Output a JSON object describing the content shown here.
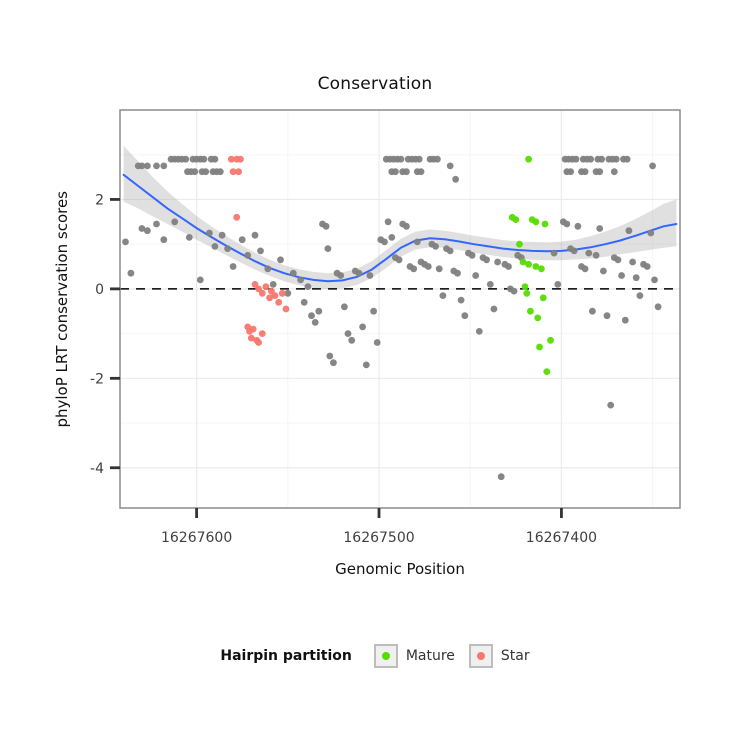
{
  "title": "Conservation",
  "legend": {
    "title": "Hairpin partition",
    "items": [
      {
        "label": "Mature",
        "color": "#55DD00"
      },
      {
        "label": "Star",
        "color": "#F8766D"
      }
    ]
  },
  "chart_data": {
    "type": "scatter",
    "title": "Conservation",
    "xlabel": "Genomic Position",
    "ylabel": "phyloP LRT conservation scores",
    "grid": true,
    "legend_position": "bottom",
    "panel_bg": "#FFFFFF",
    "panel_border": "#8C8C8C",
    "grid_major": "#EBEBEB",
    "grid_minor": "#F5F5F5",
    "tick_color": "#333333",
    "tick_label_color": "#404040",
    "point_radius": 3.4,
    "x_axis": {
      "label": "Genomic Position",
      "reversed": true,
      "domain": [
        16267642,
        16267335
      ],
      "ticks": [
        {
          "value": 16267600,
          "label": "16267600"
        },
        {
          "value": 16267500,
          "label": "16267500"
        },
        {
          "value": 16267400,
          "label": "16267400"
        }
      ],
      "minor": [
        16267550,
        16267450,
        16267350
      ]
    },
    "y_axis": {
      "label": "phyloP LRT conservation scores",
      "domain": [
        4.0,
        -4.9
      ],
      "ticks": [
        {
          "value": 2,
          "label": "2"
        },
        {
          "value": 0,
          "label": "0"
        },
        {
          "value": -2,
          "label": "-2"
        },
        {
          "value": -4,
          "label": "-4"
        }
      ],
      "minor": [
        3,
        1,
        -1,
        -3
      ]
    },
    "hline": {
      "y": 0,
      "color": "#000000",
      "style": "dashed"
    },
    "smooth": {
      "color": "#3366FF",
      "band_color": "#9E9E9E",
      "band_opacity": 0.32,
      "points": [
        [
          16267640,
          2.55,
          1.95,
          3.2
        ],
        [
          16267632,
          2.3,
          1.8,
          2.85
        ],
        [
          16267624,
          2.05,
          1.62,
          2.5
        ],
        [
          16267616,
          1.8,
          1.45,
          2.18
        ],
        [
          16267608,
          1.58,
          1.28,
          1.9
        ],
        [
          16267600,
          1.36,
          1.1,
          1.63
        ],
        [
          16267592,
          1.16,
          0.93,
          1.4
        ],
        [
          16267584,
          0.97,
          0.76,
          1.19
        ],
        [
          16267576,
          0.79,
          0.59,
          0.99
        ],
        [
          16267568,
          0.62,
          0.43,
          0.81
        ],
        [
          16267560,
          0.47,
          0.29,
          0.65
        ],
        [
          16267552,
          0.35,
          0.17,
          0.53
        ],
        [
          16267544,
          0.26,
          0.08,
          0.44
        ],
        [
          16267536,
          0.2,
          0.02,
          0.38
        ],
        [
          16267528,
          0.17,
          -0.01,
          0.35
        ],
        [
          16267520,
          0.19,
          0.01,
          0.37
        ],
        [
          16267512,
          0.27,
          0.09,
          0.45
        ],
        [
          16267504,
          0.43,
          0.24,
          0.62
        ],
        [
          16267496,
          0.67,
          0.47,
          0.87
        ],
        [
          16267488,
          0.92,
          0.72,
          1.12
        ],
        [
          16267480,
          1.08,
          0.88,
          1.28
        ],
        [
          16267472,
          1.13,
          0.93,
          1.33
        ],
        [
          16267464,
          1.11,
          0.92,
          1.3
        ],
        [
          16267456,
          1.06,
          0.87,
          1.25
        ],
        [
          16267448,
          1.0,
          0.81,
          1.19
        ],
        [
          16267440,
          0.95,
          0.76,
          1.14
        ],
        [
          16267432,
          0.9,
          0.71,
          1.09
        ],
        [
          16267424,
          0.87,
          0.68,
          1.06
        ],
        [
          16267416,
          0.85,
          0.65,
          1.05
        ],
        [
          16267408,
          0.84,
          0.64,
          1.04
        ],
        [
          16267400,
          0.85,
          0.64,
          1.06
        ],
        [
          16267392,
          0.88,
          0.66,
          1.1
        ],
        [
          16267384,
          0.93,
          0.68,
          1.18
        ],
        [
          16267376,
          1.0,
          0.72,
          1.28
        ],
        [
          16267368,
          1.08,
          0.77,
          1.4
        ],
        [
          16267360,
          1.18,
          0.82,
          1.55
        ],
        [
          16267352,
          1.29,
          0.87,
          1.72
        ],
        [
          16267344,
          1.4,
          0.92,
          1.9
        ],
        [
          16267337,
          1.45,
          0.95,
          2.0
        ]
      ]
    },
    "series": [
      {
        "name": "Other",
        "partition": "none",
        "color": "#7F7F7F",
        "points": [
          [
            16267632,
            2.75
          ],
          [
            16267630,
            2.75
          ],
          [
            16267627,
            2.75
          ],
          [
            16267622,
            2.75
          ],
          [
            16267618,
            2.75
          ],
          [
            16267614,
            2.9
          ],
          [
            16267612,
            2.9
          ],
          [
            16267610,
            2.9
          ],
          [
            16267608,
            2.9
          ],
          [
            16267606,
            2.9
          ],
          [
            16267602,
            2.9
          ],
          [
            16267600,
            2.9
          ],
          [
            16267598,
            2.9
          ],
          [
            16267596,
            2.9
          ],
          [
            16267592,
            2.9
          ],
          [
            16267590,
            2.9
          ],
          [
            16267605,
            2.62
          ],
          [
            16267603,
            2.62
          ],
          [
            16267601,
            2.62
          ],
          [
            16267597,
            2.62
          ],
          [
            16267595,
            2.62
          ],
          [
            16267591,
            2.62
          ],
          [
            16267589,
            2.62
          ],
          [
            16267587,
            2.62
          ],
          [
            16267496,
            2.9
          ],
          [
            16267494,
            2.9
          ],
          [
            16267492,
            2.9
          ],
          [
            16267490,
            2.9
          ],
          [
            16267488,
            2.9
          ],
          [
            16267484,
            2.9
          ],
          [
            16267482,
            2.9
          ],
          [
            16267480,
            2.9
          ],
          [
            16267478,
            2.9
          ],
          [
            16267472,
            2.9
          ],
          [
            16267470,
            2.9
          ],
          [
            16267468,
            2.9
          ],
          [
            16267493,
            2.62
          ],
          [
            16267491,
            2.62
          ],
          [
            16267487,
            2.62
          ],
          [
            16267485,
            2.62
          ],
          [
            16267479,
            2.62
          ],
          [
            16267477,
            2.62
          ],
          [
            16267461,
            2.75
          ],
          [
            16267458,
            2.45
          ],
          [
            16267398,
            2.9
          ],
          [
            16267396,
            2.9
          ],
          [
            16267394,
            2.9
          ],
          [
            16267392,
            2.9
          ],
          [
            16267388,
            2.9
          ],
          [
            16267386,
            2.9
          ],
          [
            16267384,
            2.9
          ],
          [
            16267380,
            2.9
          ],
          [
            16267378,
            2.9
          ],
          [
            16267374,
            2.9
          ],
          [
            16267372,
            2.9
          ],
          [
            16267370,
            2.9
          ],
          [
            16267366,
            2.9
          ],
          [
            16267364,
            2.9
          ],
          [
            16267397,
            2.62
          ],
          [
            16267395,
            2.62
          ],
          [
            16267389,
            2.62
          ],
          [
            16267387,
            2.62
          ],
          [
            16267381,
            2.62
          ],
          [
            16267379,
            2.62
          ],
          [
            16267371,
            2.62
          ],
          [
            16267350,
            2.75
          ],
          [
            16267639,
            1.05
          ],
          [
            16267636,
            0.35
          ],
          [
            16267630,
            1.35
          ],
          [
            16267627,
            1.3
          ],
          [
            16267622,
            1.45
          ],
          [
            16267618,
            1.1
          ],
          [
            16267612,
            1.5
          ],
          [
            16267604,
            1.15
          ],
          [
            16267598,
            0.2
          ],
          [
            16267593,
            1.25
          ],
          [
            16267590,
            0.95
          ],
          [
            16267586,
            1.2
          ],
          [
            16267583,
            0.9
          ],
          [
            16267580,
            0.5
          ],
          [
            16267575,
            1.1
          ],
          [
            16267572,
            0.75
          ],
          [
            16267568,
            1.2
          ],
          [
            16267565,
            0.85
          ],
          [
            16267561,
            0.45
          ],
          [
            16267558,
            0.1
          ],
          [
            16267554,
            0.65
          ],
          [
            16267550,
            -0.1
          ],
          [
            16267547,
            0.35
          ],
          [
            16267543,
            0.2
          ],
          [
            16267541,
            -0.3
          ],
          [
            16267539,
            0.05
          ],
          [
            16267537,
            -0.6
          ],
          [
            16267535,
            -0.75
          ],
          [
            16267533,
            -0.5
          ],
          [
            16267531,
            1.45
          ],
          [
            16267529,
            1.4
          ],
          [
            16267528,
            0.9
          ],
          [
            16267527,
            -1.5
          ],
          [
            16267525,
            -1.65
          ],
          [
            16267523,
            0.35
          ],
          [
            16267521,
            0.3
          ],
          [
            16267519,
            -0.4
          ],
          [
            16267517,
            -1.0
          ],
          [
            16267515,
            -1.15
          ],
          [
            16267513,
            0.4
          ],
          [
            16267511,
            0.35
          ],
          [
            16267509,
            -0.85
          ],
          [
            16267507,
            -1.7
          ],
          [
            16267505,
            0.3
          ],
          [
            16267503,
            -0.5
          ],
          [
            16267501,
            -1.2
          ],
          [
            16267499,
            1.1
          ],
          [
            16267497,
            1.05
          ],
          [
            16267495,
            1.5
          ],
          [
            16267493,
            1.15
          ],
          [
            16267491,
            0.7
          ],
          [
            16267489,
            0.65
          ],
          [
            16267487,
            1.45
          ],
          [
            16267485,
            1.4
          ],
          [
            16267483,
            0.5
          ],
          [
            16267481,
            0.45
          ],
          [
            16267479,
            1.05
          ],
          [
            16267477,
            0.6
          ],
          [
            16267475,
            0.55
          ],
          [
            16267473,
            0.5
          ],
          [
            16267471,
            1.0
          ],
          [
            16267469,
            0.95
          ],
          [
            16267467,
            0.45
          ],
          [
            16267465,
            -0.15
          ],
          [
            16267463,
            0.9
          ],
          [
            16267461,
            0.85
          ],
          [
            16267459,
            0.4
          ],
          [
            16267457,
            0.35
          ],
          [
            16267455,
            -0.25
          ],
          [
            16267453,
            -0.6
          ],
          [
            16267451,
            0.8
          ],
          [
            16267449,
            0.75
          ],
          [
            16267447,
            0.3
          ],
          [
            16267445,
            -0.95
          ],
          [
            16267443,
            0.7
          ],
          [
            16267441,
            0.65
          ],
          [
            16267439,
            0.1
          ],
          [
            16267437,
            -0.45
          ],
          [
            16267435,
            0.6
          ],
          [
            16267433,
            -4.2
          ],
          [
            16267431,
            0.55
          ],
          [
            16267429,
            0.5
          ],
          [
            16267428,
            0
          ],
          [
            16267426,
            -0.05
          ],
          [
            16267424,
            0.75
          ],
          [
            16267422,
            0.7
          ],
          [
            16267404,
            0.8
          ],
          [
            16267402,
            0.1
          ],
          [
            16267399,
            1.5
          ],
          [
            16267397,
            1.45
          ],
          [
            16267395,
            0.9
          ],
          [
            16267393,
            0.85
          ],
          [
            16267391,
            1.4
          ],
          [
            16267389,
            0.5
          ],
          [
            16267387,
            0.45
          ],
          [
            16267385,
            0.8
          ],
          [
            16267383,
            -0.5
          ],
          [
            16267381,
            0.75
          ],
          [
            16267379,
            1.35
          ],
          [
            16267377,
            0.4
          ],
          [
            16267375,
            -0.6
          ],
          [
            16267373,
            -2.6
          ],
          [
            16267371,
            0.7
          ],
          [
            16267369,
            0.65
          ],
          [
            16267367,
            0.3
          ],
          [
            16267365,
            -0.7
          ],
          [
            16267363,
            1.3
          ],
          [
            16267361,
            0.6
          ],
          [
            16267359,
            0.25
          ],
          [
            16267357,
            -0.15
          ],
          [
            16267355,
            0.55
          ],
          [
            16267353,
            0.5
          ],
          [
            16267351,
            1.25
          ],
          [
            16267349,
            0.2
          ],
          [
            16267347,
            -0.4
          ]
        ]
      },
      {
        "name": "Mature",
        "partition": "mature",
        "color": "#55DD00",
        "points": [
          [
            16267418,
            2.9
          ],
          [
            16267427,
            1.6
          ],
          [
            16267425,
            1.55
          ],
          [
            16267416,
            1.55
          ],
          [
            16267414,
            1.5
          ],
          [
            16267409,
            1.45
          ],
          [
            16267423,
            1.0
          ],
          [
            16267421,
            0.6
          ],
          [
            16267418,
            0.55
          ],
          [
            16267414,
            0.5
          ],
          [
            16267411,
            0.45
          ],
          [
            16267420,
            0.05
          ],
          [
            16267419,
            -0.1
          ],
          [
            16267417,
            -0.5
          ],
          [
            16267413,
            -0.65
          ],
          [
            16267410,
            -0.2
          ],
          [
            16267412,
            -1.3
          ],
          [
            16267406,
            -1.15
          ],
          [
            16267408,
            -1.85
          ]
        ]
      },
      {
        "name": "Star",
        "partition": "star",
        "color": "#F8766D",
        "points": [
          [
            16267581,
            2.9
          ],
          [
            16267578,
            2.9
          ],
          [
            16267576,
            2.9
          ],
          [
            16267580,
            2.62
          ],
          [
            16267577,
            2.62
          ],
          [
            16267578,
            1.6
          ],
          [
            16267572,
            -0.85
          ],
          [
            16267571,
            -0.95
          ],
          [
            16267570,
            -1.1
          ],
          [
            16267569,
            -0.9
          ],
          [
            16267567,
            -1.15
          ],
          [
            16267566,
            -1.2
          ],
          [
            16267564,
            -1.0
          ],
          [
            16267568,
            0.1
          ],
          [
            16267566,
            0
          ],
          [
            16267564,
            -0.1
          ],
          [
            16267562,
            0.05
          ],
          [
            16267560,
            -0.2
          ],
          [
            16267559,
            -0.05
          ],
          [
            16267557,
            -0.15
          ],
          [
            16267555,
            -0.3
          ],
          [
            16267553,
            -0.1
          ],
          [
            16267551,
            -0.45
          ]
        ]
      }
    ]
  }
}
